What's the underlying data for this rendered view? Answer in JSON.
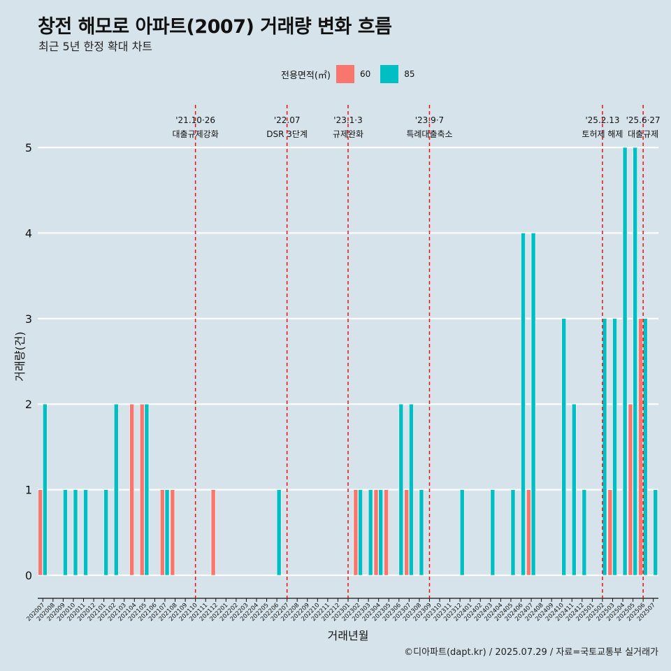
{
  "title": "창전 해모로 아파트(2007) 거래량 변화 흐름",
  "subtitle": "최근 5년 한정 확대 차트",
  "legend": {
    "title": "전용면적(㎡)",
    "entries": [
      {
        "label": "60",
        "color": "#F8766D"
      },
      {
        "label": "85",
        "color": "#00BFC4"
      }
    ]
  },
  "caption": "©디아파트(dapt.kr) / 2025.07.29 / 자료=국토교통부 실거래가",
  "chart_data": {
    "type": "bar",
    "xlabel": "거래년월",
    "ylabel": "거래량(건)",
    "ylim": [
      0,
      5
    ],
    "yticks": [
      0,
      1,
      2,
      3,
      4,
      5
    ],
    "grid": true,
    "legend_position": "top",
    "categories": [
      "202007",
      "202008",
      "202009",
      "202010",
      "202011",
      "202012",
      "202101",
      "202102",
      "202103",
      "202104",
      "202105",
      "202106",
      "202107",
      "202108",
      "202109",
      "202110",
      "202111",
      "202112",
      "202201",
      "202202",
      "202203",
      "202204",
      "202205",
      "202206",
      "202207",
      "202208",
      "202209",
      "202210",
      "202211",
      "202212",
      "202301",
      "202302",
      "202303",
      "202304",
      "202305",
      "202306",
      "202307",
      "202308",
      "202309",
      "202310",
      "202311",
      "202312",
      "202401",
      "202402",
      "202403",
      "202404",
      "202405",
      "202406",
      "202407",
      "202408",
      "202409",
      "202410",
      "202411",
      "202412",
      "202501",
      "202502",
      "202503",
      "202504",
      "202505",
      "202506",
      "202507"
    ],
    "series": [
      {
        "name": "60",
        "color": "#F8766D",
        "values": [
          1,
          0,
          0,
          0,
          0,
          0,
          0,
          0,
          0,
          2,
          2,
          0,
          1,
          1,
          0,
          0,
          0,
          1,
          0,
          0,
          0,
          0,
          0,
          0,
          0,
          0,
          0,
          0,
          0,
          0,
          0,
          1,
          0,
          1,
          1,
          0,
          1,
          0,
          0,
          0,
          0,
          0,
          0,
          0,
          0,
          0,
          0,
          0,
          1,
          0,
          0,
          0,
          0,
          0,
          0,
          0,
          1,
          0,
          2,
          3,
          0
        ]
      },
      {
        "name": "85",
        "color": "#00BFC4",
        "values": [
          2,
          0,
          1,
          1,
          1,
          0,
          1,
          2,
          0,
          0,
          2,
          0,
          1,
          0,
          0,
          0,
          0,
          0,
          0,
          0,
          0,
          0,
          0,
          1,
          0,
          0,
          0,
          0,
          0,
          0,
          0,
          1,
          1,
          1,
          0,
          2,
          2,
          1,
          0,
          0,
          0,
          1,
          0,
          0,
          1,
          0,
          1,
          4,
          4,
          0,
          0,
          3,
          2,
          1,
          0,
          3,
          3,
          5,
          5,
          3,
          1
        ]
      }
    ],
    "annotations": [
      {
        "category": "202110",
        "date": "'21.10·26",
        "text": "대출규제강화"
      },
      {
        "category": "202207",
        "date": "'22.07",
        "text": "DSR 3단계"
      },
      {
        "category": "202301",
        "date": "'23.1·3",
        "text": "규제완화"
      },
      {
        "category": "202309",
        "date": "'23.9·7",
        "text": "특례대출축소"
      },
      {
        "category": "202502",
        "date": "'25.2.13",
        "text": "토허제 해제"
      },
      {
        "category": "202506",
        "date": "'25.6·27",
        "text": "대출규제"
      }
    ]
  }
}
